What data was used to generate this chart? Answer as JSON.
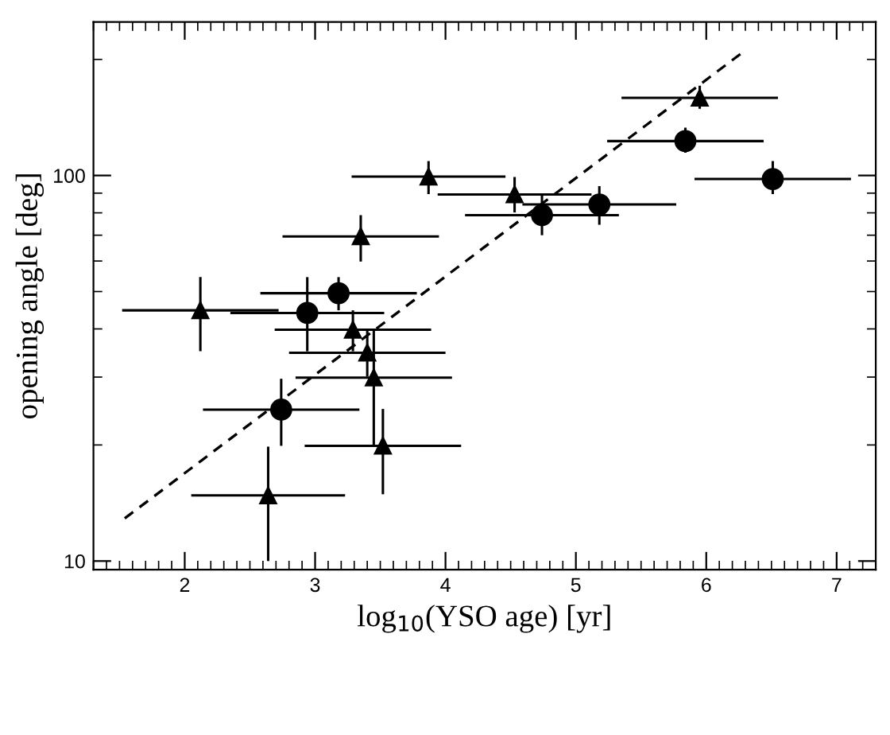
{
  "chart_data": {
    "type": "scatter",
    "xlabel": "log$_{10}$(YSO age) [yr]",
    "ylabel": "opening angle [deg]",
    "xlim": [
      1.3,
      7.3
    ],
    "xticks": [
      2,
      3,
      4,
      5,
      6,
      7
    ],
    "ylim": [
      9.5,
      250
    ],
    "yticks": [
      10,
      100
    ],
    "log": "y",
    "grid": false,
    "series": [
      {
        "marker": "triangle",
        "color": "#000000",
        "x": [
          2.12,
          3.35,
          3.87,
          3.29,
          3.4,
          3.45,
          3.52,
          2.64,
          4.53,
          5.95
        ],
        "values": [
          44.7,
          69.5,
          99.3,
          39.8,
          34.7,
          29.9,
          19.9,
          14.8,
          89.3,
          159
        ],
        "xerrors": [
          0.6,
          0.6,
          0.59,
          0.6,
          0.6,
          0.6,
          0.6,
          0.59,
          0.59,
          0.6
        ],
        "errors": [
          [
            35.0,
            54.5
          ],
          [
            59.8,
            78.9
          ],
          [
            89.5,
            109
          ],
          [
            35.0,
            44.7
          ],
          [
            30.1,
            39.8
          ],
          [
            20.0,
            39.8
          ],
          [
            14.9,
            24.8
          ],
          [
            10.0,
            19.8
          ],
          [
            80.2,
            99.1
          ],
          [
            149,
            171
          ]
        ]
      },
      {
        "marker": "circle",
        "color": "#000000",
        "x": [
          2.94,
          3.18,
          2.74,
          4.74,
          5.18,
          5.84,
          6.51
        ],
        "values": [
          44.0,
          49.5,
          24.7,
          78.9,
          84.1,
          122.8,
          97.9
        ],
        "xerrors": [
          0.59,
          0.6,
          0.6,
          0.59,
          0.59,
          0.6,
          0.6
        ],
        "errors": [
          [
            35.0,
            54.5
          ],
          [
            44.7,
            54.5
          ],
          [
            19.9,
            29.7
          ],
          [
            70.0,
            88.7
          ],
          [
            74.5,
            93.8
          ],
          [
            114.5,
            133
          ],
          [
            89.5,
            109
          ]
        ]
      },
      {
        "type": "line",
        "line_style": "dashed",
        "marker": "none",
        "color": "#000000",
        "x": [
          1.54,
          6.29
        ],
        "values": [
          12.9,
          210
        ]
      }
    ]
  }
}
